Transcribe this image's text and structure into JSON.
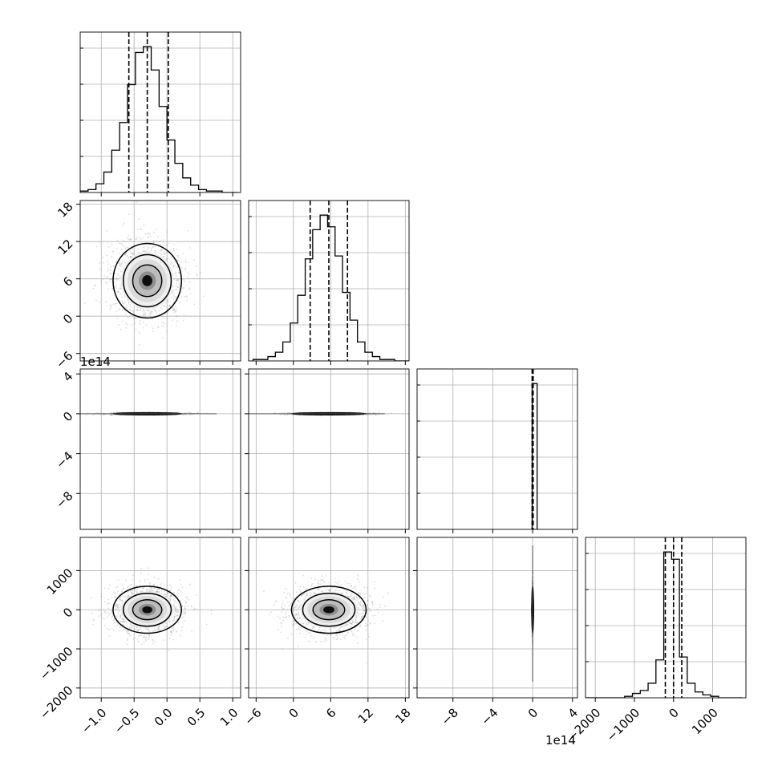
{
  "chart_data": {
    "type": "corner",
    "parameters": [
      {
        "index": 0,
        "range": [
          -1.32,
          1.12
        ],
        "ticks": [
          -1.0,
          -0.5,
          0.0,
          0.5,
          1.0
        ],
        "tick_labels": [
          "−1.0",
          "−0.5",
          "0.0",
          "0.5",
          "1.0"
        ],
        "quantiles": [
          -0.58,
          -0.3,
          0.02
        ],
        "offset_label": ""
      },
      {
        "index": 1,
        "range": [
          -7.2,
          18.6
        ],
        "ticks": [
          -6,
          0,
          6,
          12,
          18
        ],
        "tick_labels": [
          "−6",
          "0",
          "6",
          "12",
          "18"
        ],
        "quantiles": [
          2.7,
          5.7,
          8.7
        ],
        "offset_label": ""
      },
      {
        "index": 2,
        "range": [
          -11.6,
          4.5
        ],
        "ticks": [
          -8,
          -4,
          0,
          4
        ],
        "tick_labels": [
          "−8",
          "−4",
          "0",
          "4"
        ],
        "quantiles": [
          -0.05,
          0.0,
          0.05
        ],
        "offset_label": "1e14",
        "y_offset_label": "1e14"
      },
      {
        "index": 3,
        "range": [
          -2250,
          1850
        ],
        "ticks": [
          -2000,
          -1000,
          0,
          1000
        ],
        "tick_labels": [
          "−2000",
          "−1000",
          "0",
          "1000"
        ],
        "quantiles": [
          -210,
          0,
          210
        ],
        "offset_label": ""
      }
    ],
    "histograms": [
      {
        "param": 0,
        "bin_edges": [
          -1.32,
          -1.2,
          -1.08,
          -0.96,
          -0.84,
          -0.72,
          -0.6,
          -0.48,
          -0.36,
          -0.24,
          -0.12,
          0.0,
          0.12,
          0.24,
          0.36,
          0.48,
          0.6,
          0.72,
          0.84,
          0.96,
          1.08
        ],
        "counts": [
          0.01,
          0.02,
          0.06,
          0.14,
          0.29,
          0.48,
          0.74,
          0.96,
          1.0,
          0.84,
          0.59,
          0.36,
          0.2,
          0.1,
          0.05,
          0.02,
          0.01,
          0.01,
          0.0,
          0.0
        ]
      },
      {
        "param": 1,
        "bin_edges": [
          -6.5,
          -5.3,
          -4.1,
          -2.9,
          -1.7,
          -0.5,
          0.7,
          1.9,
          3.1,
          4.3,
          5.5,
          6.7,
          7.9,
          9.1,
          10.3,
          11.5,
          12.7,
          13.9,
          15.1,
          16.3,
          17.5,
          18.6
        ],
        "counts": [
          0.01,
          0.01,
          0.03,
          0.06,
          0.13,
          0.26,
          0.45,
          0.7,
          0.9,
          1.0,
          0.92,
          0.72,
          0.47,
          0.28,
          0.13,
          0.06,
          0.03,
          0.01,
          0.01,
          0.0,
          0.0
        ]
      },
      {
        "param": 2,
        "bin_edges": [
          -0.05,
          0.2,
          0.45
        ],
        "counts": [
          1.0,
          1.0
        ]
      },
      {
        "param": 3,
        "bin_edges": [
          -2250,
          -2050,
          -1850,
          -1650,
          -1450,
          -1250,
          -1050,
          -850,
          -650,
          -450,
          -250,
          -50,
          150,
          350,
          550,
          750,
          950,
          1150,
          1350,
          1550,
          1750
        ],
        "counts": [
          0.0,
          0.0,
          0.0,
          0.0,
          0.0,
          0.01,
          0.03,
          0.05,
          0.1,
          0.26,
          1.0,
          0.95,
          0.28,
          0.1,
          0.04,
          0.02,
          0.01,
          0.0,
          0.0,
          0.0
        ]
      }
    ],
    "joint_distributions": [
      {
        "row": 1,
        "col": 0,
        "mean": [
          -0.3,
          5.7
        ],
        "std": [
          0.26,
          3.0
        ],
        "density_extent": [
          -0.85,
          0.45,
          -3.5,
          16.0
        ]
      },
      {
        "row": 2,
        "col": 0,
        "mean": [
          -0.3,
          0.0
        ],
        "std": [
          0.26,
          0.05
        ],
        "density_extent": [
          -0.85,
          0.3,
          -0.25,
          0.25
        ]
      },
      {
        "row": 2,
        "col": 1,
        "mean": [
          5.7,
          0.0
        ],
        "std": [
          3.0,
          0.05
        ],
        "density_extent": [
          0.0,
          13.0,
          -0.25,
          0.25
        ]
      },
      {
        "row": 3,
        "col": 0,
        "mean": [
          -0.3,
          0.0
        ],
        "std": [
          0.26,
          300
        ],
        "density_extent": [
          -0.85,
          0.45,
          -1000,
          1000
        ]
      },
      {
        "row": 3,
        "col": 1,
        "mean": [
          5.7,
          0.0
        ],
        "std": [
          3.0,
          300
        ],
        "density_extent": [
          -0.5,
          12.0,
          -1000,
          1000
        ]
      },
      {
        "row": 3,
        "col": 2,
        "mean": [
          0.0,
          0.0
        ],
        "std": [
          0.02,
          300
        ],
        "density_extent": [
          -0.1,
          0.1,
          -1800,
          1800
        ]
      }
    ],
    "grid": true,
    "contour_levels": 3,
    "colors": {
      "line": "#000000",
      "grid": "#b0b0b0",
      "scatter": "#9a9a9a"
    }
  }
}
